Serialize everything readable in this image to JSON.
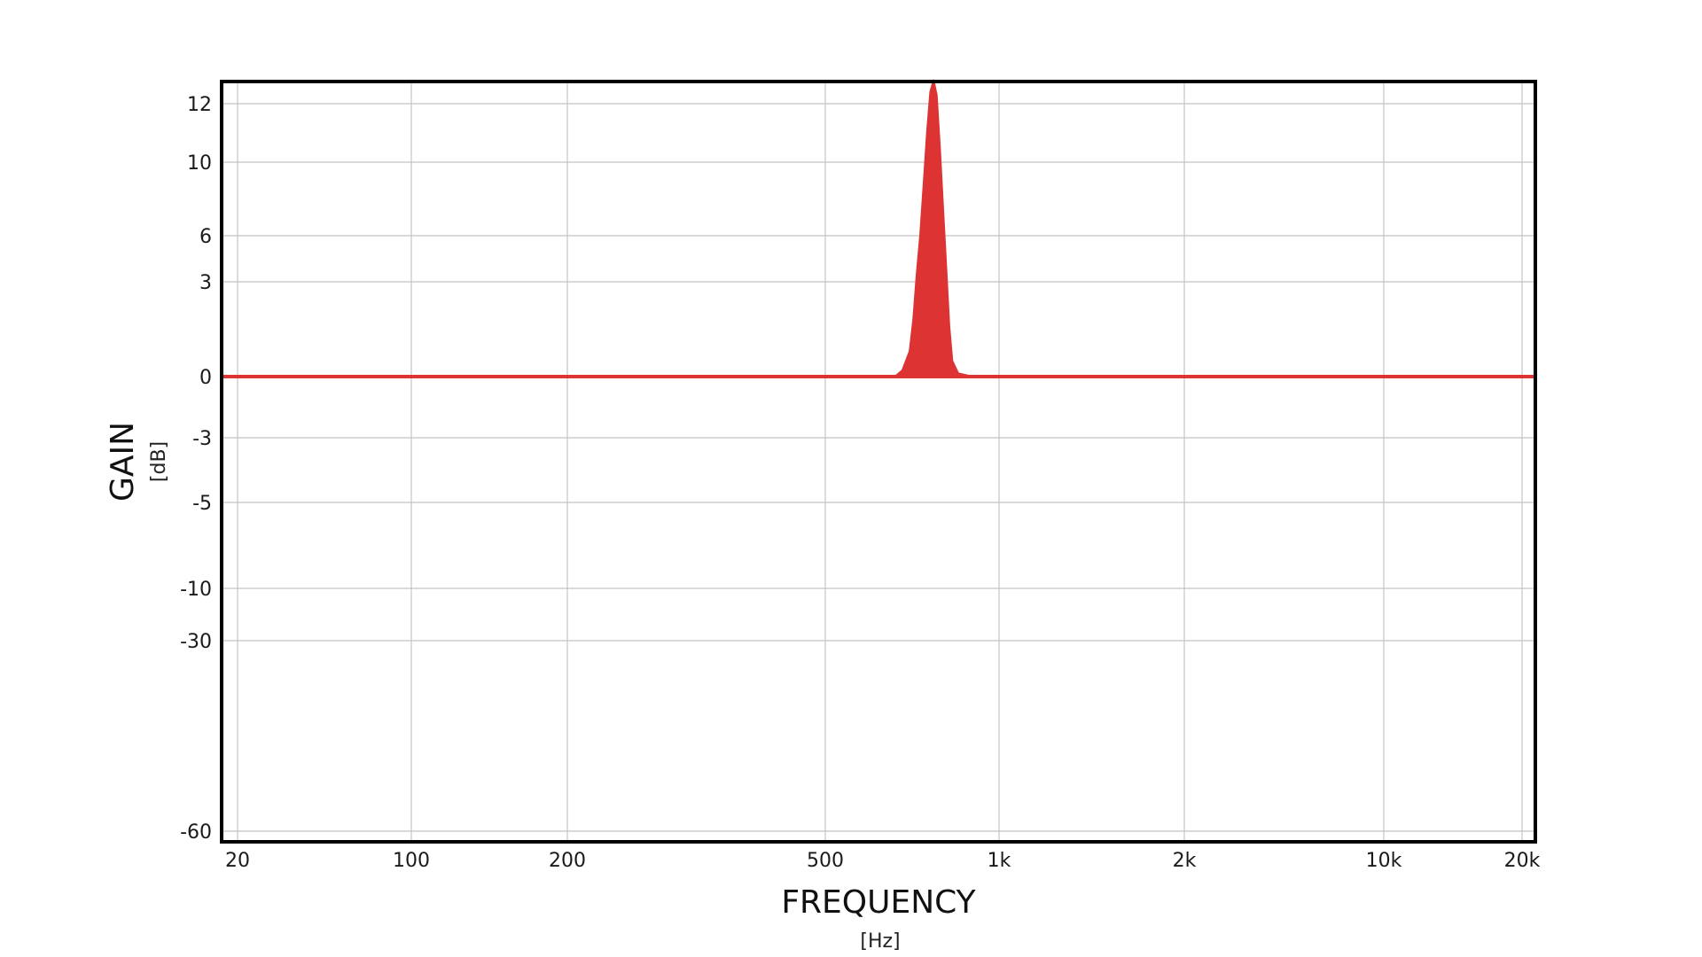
{
  "chart_data": {
    "type": "area",
    "title": "",
    "xlabel": "FREQUENCY",
    "xunit": "[Hz]",
    "ylabel": "GAIN",
    "yunit": "[dB]",
    "xscale": "log",
    "grid": true,
    "legend": "none",
    "x_ticks": [
      {
        "value": 20,
        "label": "20"
      },
      {
        "value": 100,
        "label": "100"
      },
      {
        "value": 200,
        "label": "200"
      },
      {
        "value": 500,
        "label": "500"
      },
      {
        "value": 1000,
        "label": "1k"
      },
      {
        "value": 2000,
        "label": "2k"
      },
      {
        "value": 10000,
        "label": "10k"
      },
      {
        "value": 20000,
        "label": "20k"
      }
    ],
    "y_ticks": [
      {
        "value": 12,
        "label": "12"
      },
      {
        "value": 10,
        "label": "10"
      },
      {
        "value": 6,
        "label": "6"
      },
      {
        "value": 3,
        "label": "3"
      },
      {
        "value": 0,
        "label": "0"
      },
      {
        "value": -3,
        "label": "-3"
      },
      {
        "value": -5,
        "label": "-5"
      },
      {
        "value": -10,
        "label": "-10"
      },
      {
        "value": -30,
        "label": "-30"
      },
      {
        "value": -60,
        "label": "-60"
      }
    ],
    "series": [
      {
        "color": "#dd3333",
        "x": [
          20,
          100,
          200,
          500,
          600,
          660,
          680,
          700,
          710,
          720,
          730,
          740,
          750,
          760,
          770,
          780,
          790,
          800,
          810,
          820,
          830,
          850,
          900,
          1000,
          2000,
          10000,
          20000
        ],
        "y": [
          0,
          0,
          0,
          0,
          0,
          0,
          0.2,
          0.8,
          1.8,
          3.5,
          6,
          8.8,
          11,
          12.4,
          12.8,
          12.3,
          10.5,
          7.5,
          4,
          1.6,
          0.5,
          0.1,
          0,
          0,
          0,
          0,
          0
        ]
      }
    ]
  }
}
